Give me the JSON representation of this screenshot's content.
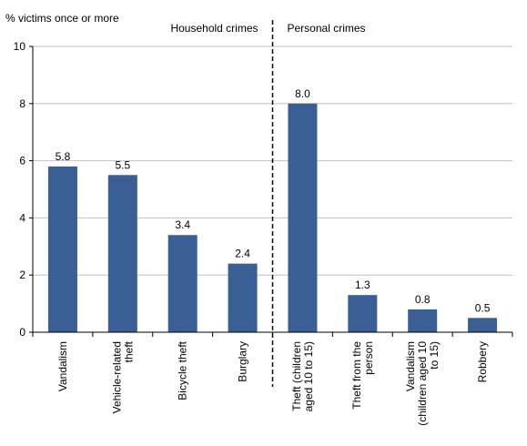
{
  "chart_data": {
    "type": "bar",
    "ylabel": "% victims once or more",
    "ylim": [
      0,
      10
    ],
    "yticks": [
      "0",
      "2",
      "4",
      "6",
      "8",
      "10"
    ],
    "grid": true,
    "bar_color": "#3A5F94",
    "grid_color": "#C0C0C0",
    "categories": [
      [
        "Vandalism"
      ],
      [
        "Vehicle-related",
        "theft"
      ],
      [
        "Bicycle theft"
      ],
      [
        "Burglary"
      ],
      [
        "Theft (children",
        "aged 10 to 15)"
      ],
      [
        "Theft from the",
        "person"
      ],
      [
        "Vandalism",
        "(children aged 10",
        "to 15)"
      ],
      [
        "Robbery"
      ]
    ],
    "values": [
      5.8,
      5.5,
      3.4,
      2.4,
      8.0,
      1.3,
      0.8,
      0.5
    ],
    "data_labels": [
      "5.8",
      "5.5",
      "3.4",
      "2.4",
      "8.0",
      "1.3",
      "0.8",
      "0.5"
    ],
    "sections": [
      {
        "label": "Household crimes",
        "categories": [
          0,
          3
        ]
      },
      {
        "label": "Personal crimes",
        "categories": [
          4,
          7
        ]
      }
    ]
  }
}
